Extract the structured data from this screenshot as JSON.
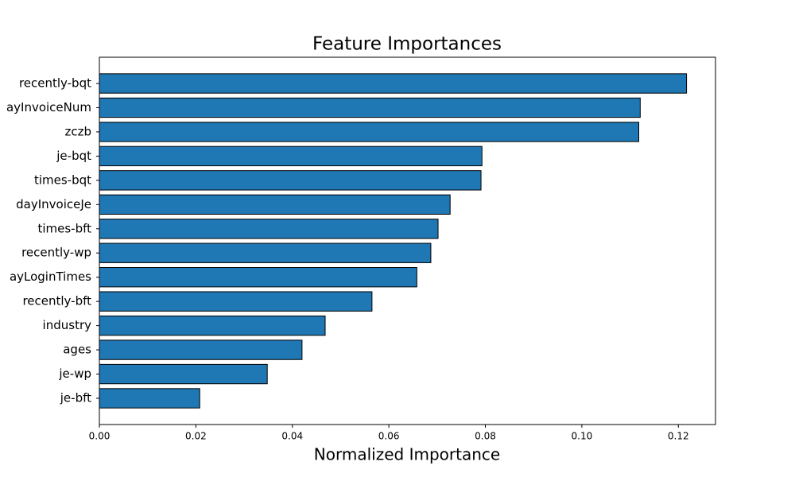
{
  "chart_data": {
    "type": "barh",
    "title": "Feature Importances",
    "x_label": "Normalized Importance",
    "categories": [
      "recently-bqt",
      "ayInvoiceNum",
      "zczb",
      "je-bqt",
      "times-bqt",
      "dayInvoiceJe",
      "times-bft",
      "recently-wp",
      "ayLoginTimes",
      "recently-bft",
      "industry",
      "ages",
      "je-wp",
      "je-bft"
    ],
    "values": [
      0.1217,
      0.1121,
      0.1118,
      0.0793,
      0.0791,
      0.0727,
      0.0702,
      0.0687,
      0.0658,
      0.0565,
      0.0468,
      0.042,
      0.0348,
      0.0208
    ],
    "color": "#1f77b4",
    "edgecolor": "#000000",
    "xlim": [
      0,
      0.1277
    ],
    "xticks": [
      {
        "value": 0,
        "label": "0.00"
      },
      {
        "value": 0.02,
        "label": "0.02"
      },
      {
        "value": 0.04,
        "label": "0.04"
      },
      {
        "value": 0.06,
        "label": "0.06"
      },
      {
        "value": 0.08,
        "label": "0.08"
      },
      {
        "value": 0.1,
        "label": "0.10"
      },
      {
        "value": 0.12,
        "label": "0.12"
      }
    ],
    "grid": false
  }
}
